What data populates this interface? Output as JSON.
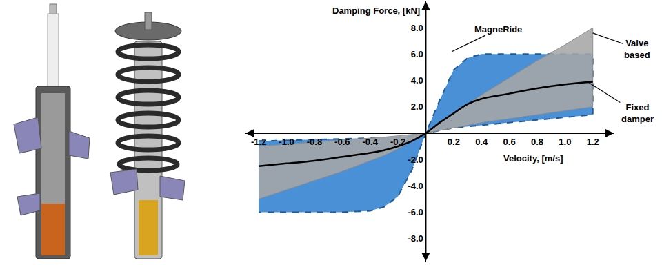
{
  "chart_data": {
    "type": "line",
    "x_label": "Velocity, [m/s]",
    "y_label": "Damping Force, [kN]",
    "x": [
      -1.2,
      -1.0,
      -0.8,
      -0.6,
      -0.4,
      -0.3,
      -0.2,
      -0.1,
      0,
      0.1,
      0.2,
      0.3,
      0.4,
      0.6,
      0.8,
      1.0,
      1.2
    ],
    "series": [
      {
        "name": "MagneRide",
        "type": "band",
        "color": "#4a90d6",
        "line_style": "dashed",
        "upper": [
          -0.6,
          -0.55,
          -0.5,
          -0.45,
          -0.4,
          -0.35,
          -0.3,
          -0.2,
          0,
          2.5,
          4.8,
          5.7,
          6.0,
          6.0,
          6.0,
          6.0,
          6.0
        ],
        "lower": [
          -6.0,
          -6.0,
          -6.0,
          -6.0,
          -5.9,
          -5.6,
          -4.8,
          -2.8,
          0,
          0.2,
          0.4,
          0.5,
          0.6,
          0.8,
          1.0,
          1.2,
          1.4
        ]
      },
      {
        "name": "Valve based",
        "type": "band",
        "color": "#a6a6a6",
        "line_style": "solid",
        "upper": [
          -1.0,
          -0.85,
          -0.7,
          -0.55,
          -0.4,
          -0.3,
          -0.2,
          -0.1,
          0,
          0.8,
          1.5,
          2.2,
          2.9,
          4.2,
          5.5,
          6.7,
          8.0
        ],
        "lower": [
          -5.0,
          -4.3,
          -3.6,
          -2.9,
          -2.1,
          -1.7,
          -1.2,
          -0.6,
          0,
          0.2,
          0.4,
          0.6,
          0.8,
          1.1,
          1.4,
          1.7,
          2.0
        ]
      },
      {
        "name": "Fixed damper",
        "type": "line",
        "color": "#000000",
        "line_style": "solid",
        "values": [
          -2.5,
          -2.3,
          -2.1,
          -1.8,
          -1.5,
          -1.3,
          -1.0,
          -0.6,
          0,
          0.8,
          1.5,
          2.2,
          2.6,
          3.0,
          3.4,
          3.7,
          3.9
        ]
      }
    ],
    "xlim": [
      -1.3,
      1.35
    ],
    "ylim": [
      -9.8,
      10
    ],
    "xticks": [
      -1.2,
      {
        "value": -1,
        "label": "-1.0"
      },
      -0.8,
      -0.6,
      -0.4,
      -0.2,
      0.2,
      0.4,
      0.6,
      0.8,
      {
        "value": 1,
        "label": "1.0"
      },
      1.2
    ],
    "yticks": [
      {
        "value": -8,
        "label": "-8.0"
      },
      {
        "value": -6,
        "label": "-6.0"
      },
      {
        "value": -4,
        "label": "-4.0"
      },
      {
        "value": -2,
        "label": "-2.0"
      },
      {
        "value": 2,
        "label": "2.0"
      },
      {
        "value": 4,
        "label": "4.0"
      },
      {
        "value": 6,
        "label": "6.0"
      },
      {
        "value": 8,
        "label": "8.0"
      }
    ],
    "grid": false
  }
}
